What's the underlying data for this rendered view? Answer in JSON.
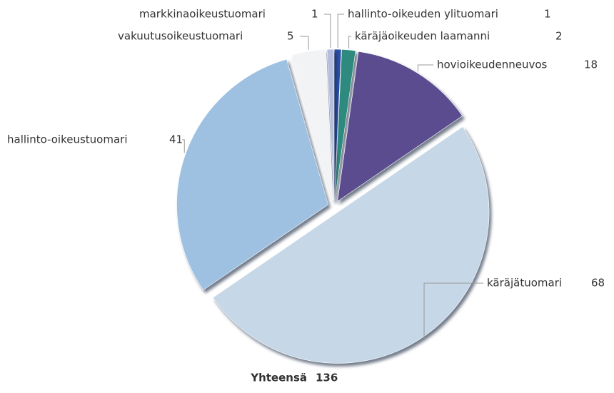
{
  "chart_data": {
    "type": "pie",
    "categories": [
      "hallinto-oikeuden ylituomari",
      "käräjäoikeuden laamanni",
      "hovioikeudenneuvos",
      "käräjätuomari",
      "hallinto-oikeustuomari",
      "vakuutusoikeustuomari",
      "markkinaoikeustuomari"
    ],
    "values": [
      1,
      2,
      18,
      68,
      41,
      5,
      1
    ],
    "colors": [
      "#2a4fa8",
      "#2e8a7e",
      "#5b4b8f",
      "#c6d7e7",
      "#9fc1e1",
      "#f1f3f5",
      "#b4bce0"
    ],
    "total_label": "Yhteensä",
    "total": 136
  }
}
